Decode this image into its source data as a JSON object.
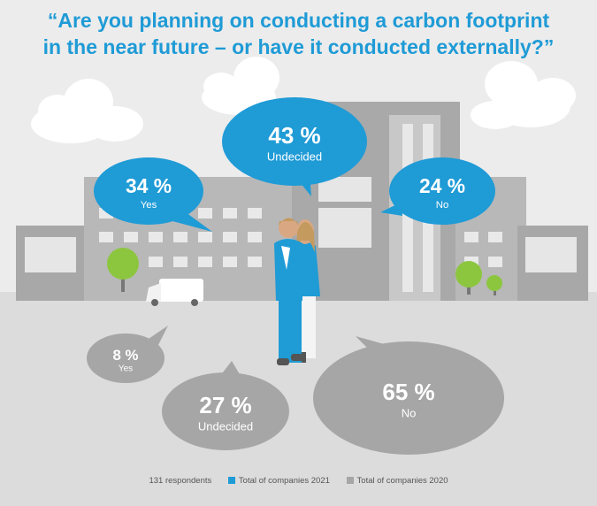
{
  "title": {
    "line1": "“Are you planning on conducting a carbon footprint",
    "line2": "in the near future – or have it conducted externally?”"
  },
  "respondents": "131 respondents",
  "colors": {
    "series_2021": "#1f9bd6",
    "series_2020": "#a6a6a6"
  },
  "chart_data": {
    "type": "bubble-comparison",
    "categories": [
      "Yes",
      "Undecided",
      "No"
    ],
    "series": [
      {
        "name": "Total of companies 2021",
        "values": [
          34,
          43,
          24
        ],
        "unit": "%"
      },
      {
        "name": "Total of companies 2020",
        "values": [
          8,
          27,
          65
        ],
        "unit": "%"
      }
    ],
    "legend": "bottom"
  }
}
